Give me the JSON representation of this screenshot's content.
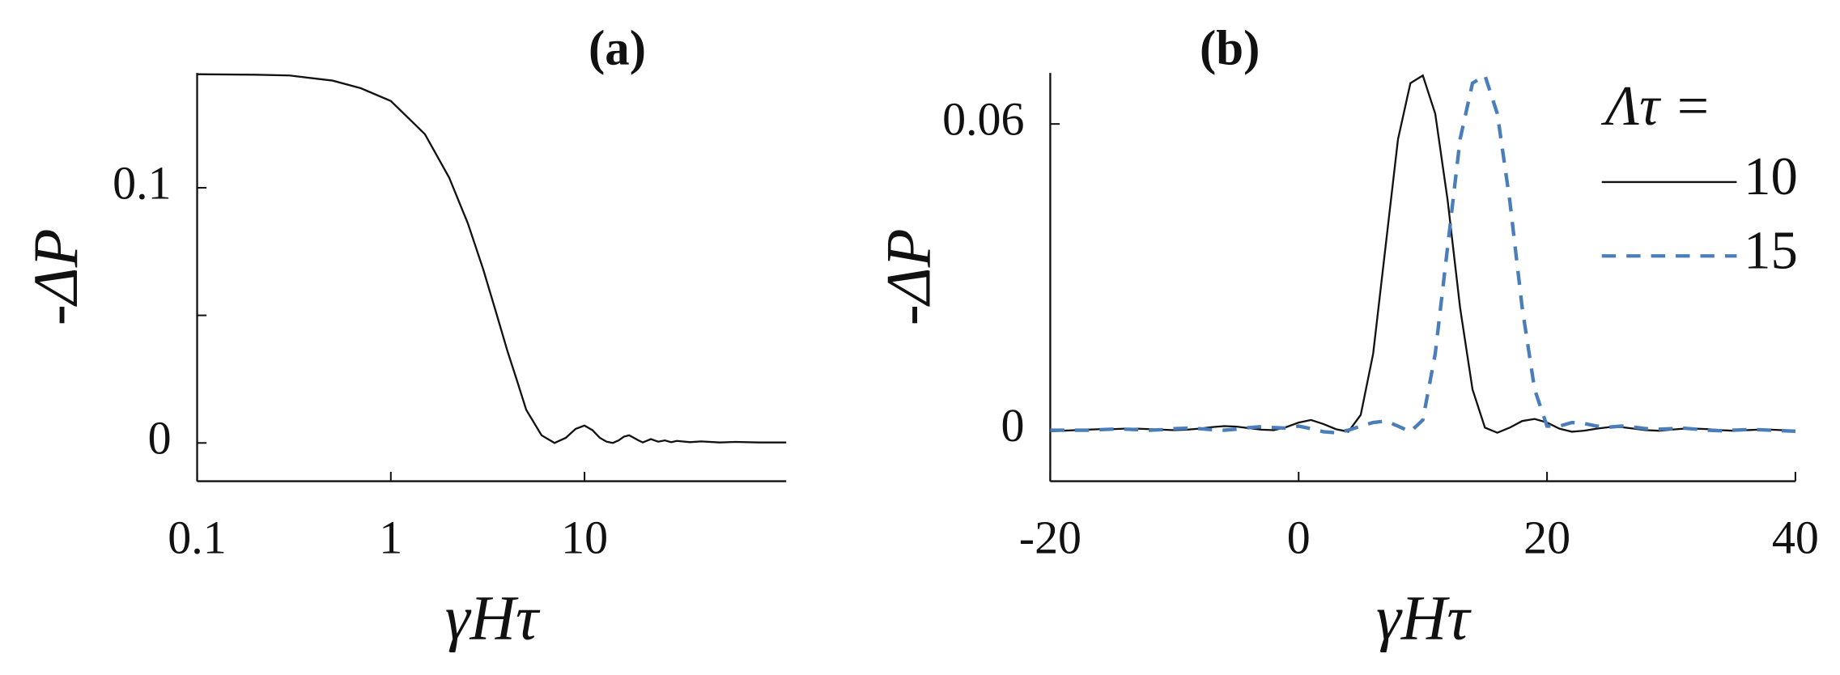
{
  "chart_data": [
    {
      "type": "line",
      "title": "(a)",
      "xlabel": "γHτ",
      "ylabel": "-ΔP",
      "xscale": "log",
      "xlim": [
        0.1,
        110
      ],
      "xticks": [
        0.1,
        1,
        10
      ],
      "ylim": [
        -0.015,
        0.145
      ],
      "yticks": [
        0,
        {
          "value": 0.05,
          "label": null
        },
        0.1
      ],
      "x": [
        0.1,
        0.2,
        0.3,
        0.5,
        0.7,
        1,
        1.5,
        2,
        2.5,
        3,
        3.5,
        4,
        4.5,
        5,
        6,
        7,
        8,
        9,
        10,
        11,
        12,
        13,
        14,
        15,
        16,
        17,
        18,
        19,
        20,
        22,
        24,
        26,
        28,
        30,
        35,
        40,
        50,
        60,
        80,
        110
      ],
      "series": [
        {
          "name": null,
          "color": "#111111",
          "dash": false,
          "values": [
            0.1445,
            0.1443,
            0.144,
            0.142,
            0.139,
            0.134,
            0.121,
            0.104,
            0.086,
            0.068,
            0.051,
            0.036,
            0.024,
            0.013,
            0.003,
            0.0,
            0.002,
            0.0055,
            0.0068,
            0.005,
            0.002,
            0.0005,
            0.0,
            0.001,
            0.0025,
            0.003,
            0.002,
            0.001,
            0.0002,
            0.0015,
            0.0005,
            0.001,
            0.0003,
            0.0008,
            0.0003,
            0.0006,
            0.0002,
            0.0004,
            0.0002,
            0.0002
          ]
        }
      ]
    },
    {
      "type": "line",
      "title": "(b)",
      "xlabel": "γHτ",
      "ylabel": "-ΔP",
      "xscale": "linear",
      "xlim": [
        -20,
        40
      ],
      "xticks": [
        -20,
        0,
        20,
        40
      ],
      "ylim": [
        -0.01,
        0.07
      ],
      "yticks": [
        0,
        0.06
      ],
      "legend_title": "Λτ =",
      "x": [
        -20,
        -19,
        -18,
        -17,
        -16,
        -15,
        -14,
        -13,
        -12,
        -11,
        -10,
        -9,
        -8,
        -7,
        -6,
        -5,
        -4,
        -3,
        -2,
        -1,
        0,
        1,
        2,
        3,
        4,
        5,
        6,
        7,
        8,
        9,
        10,
        11,
        12,
        13,
        14,
        15,
        16,
        17,
        18,
        19,
        20,
        21,
        22,
        23,
        24,
        25,
        26,
        27,
        28,
        29,
        30,
        31,
        32,
        33,
        34,
        35,
        36,
        37,
        38,
        39,
        40
      ],
      "series": [
        {
          "name": "10",
          "color": "#111111",
          "dash": false,
          "values": [
            -0.0002,
            -0.0001,
            0,
            0.0001,
            0.0002,
            0.0002,
            0.0003,
            0.0003,
            0.0002,
            0.0001,
            0,
            0.0001,
            0.0003,
            0.0006,
            0.0008,
            0.0007,
            0.0004,
            0.0001,
            0,
            0.0006,
            0.0015,
            0.002,
            0.0012,
            0.0002,
            -0.0003,
            0.003,
            0.015,
            0.036,
            0.057,
            0.068,
            0.0695,
            0.062,
            0.045,
            0.024,
            0.008,
            0.0005,
            -0.0005,
            0.0005,
            0.0018,
            0.0022,
            0.0015,
            0.0003,
            -0.0003,
            -0.0001,
            0.0003,
            0.0006,
            0.0006,
            0.0003,
            0,
            -0.0001,
            0.0001,
            0.0003,
            0.0003,
            0.0002,
            0,
            -0.0001,
            0,
            0.0001,
            0.0001,
            0,
            -0.0001
          ]
        },
        {
          "name": "15",
          "color": "#4a7ebb",
          "dash": true,
          "values": [
            0,
            0,
            0,
            0,
            0.0001,
            0.0002,
            0.0002,
            0.0001,
            0,
            0.0001,
            0.0003,
            0.0004,
            0.0003,
            0.0001,
            0,
            0.0002,
            0.0005,
            0.0007,
            0.0005,
            0.0004,
            0.0008,
            0.0003,
            -0.0003,
            -0.0005,
            0,
            0.0008,
            0.0015,
            0.0018,
            0.0008,
            -0.0003,
            0.002,
            0.015,
            0.036,
            0.057,
            0.068,
            0.0695,
            0.062,
            0.045,
            0.024,
            0.008,
            0.0008,
            0.0008,
            0.0015,
            0.0013,
            0.0008,
            0.0006,
            0.0008,
            0.0006,
            0.0003,
            0.0002,
            0.0003,
            0.0004,
            0.0002,
            0,
            -0.0001,
            0,
            0.0001,
            0.0001,
            0,
            -0.0001,
            -0.0002
          ]
        }
      ]
    }
  ]
}
